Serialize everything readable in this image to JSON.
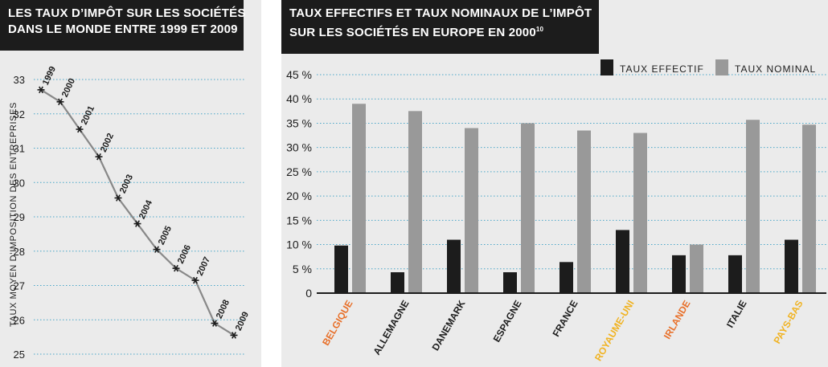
{
  "left_panel": {
    "title_line1": "LES TAUX D’IMPÔT SUR LES SOCIÉTÉS",
    "title_line2": "DANS LE MONDE ENTRE 1999 ET 2009"
  },
  "right_panel": {
    "title_line1": "TAUX EFFECTIFS ET TAUX NOMINAUX DE L’IMPÔT",
    "title_line2_main": "SUR LES SOCIÉTÉS EN EUROPE EN 2000",
    "title_line2_sup": "10"
  },
  "colors": {
    "panel_bg": "#ebebeb",
    "header_bg": "#1c1c1c",
    "line": "#888888",
    "bar_effectif": "#1c1c1c",
    "bar_nominal": "#999999",
    "grid": "#4aa6c8",
    "label_orange": "#e8702a",
    "label_yellow": "#f0b323",
    "label_dark": "#1c1c1c"
  },
  "chart_data": [
    {
      "type": "line",
      "title": "LES TAUX D’IMPÔT SUR LES SOCIÉTÉS DANS LE MONDE ENTRE 1999 ET 2009",
      "xlabel": "",
      "ylabel": "TAUX MOYEN D’IMPOSITION DES ENTREPRISES",
      "ylim": [
        25,
        33
      ],
      "yticks": [
        "25",
        "26",
        "27",
        "28",
        "29",
        "30",
        "31",
        "32",
        "33"
      ],
      "grid": true,
      "x": [
        "1999",
        "2000",
        "2001",
        "2002",
        "2003",
        "2004",
        "2005",
        "2006",
        "2007",
        "2008",
        "2009"
      ],
      "values": [
        32.7,
        32.35,
        31.55,
        30.75,
        29.55,
        28.8,
        28.05,
        27.5,
        27.15,
        25.9,
        25.55
      ]
    },
    {
      "type": "bar",
      "title": "TAUX EFFECTIFS ET TAUX NOMINAUX DE L’IMPÔT SUR LES SOCIÉTÉS EN EUROPE EN 2000",
      "xlabel": "",
      "ylabel": "",
      "ylim": [
        0,
        45
      ],
      "yticks": [
        "0",
        "5 %",
        "10 %",
        "15 %",
        "20 %",
        "25 %",
        "30 %",
        "35 %",
        "40 %",
        "45 %"
      ],
      "grid": true,
      "legend_position": "top-right",
      "categories": [
        "BELGIQUE",
        "ALLEMAGNE",
        "DANEMARK",
        "ESPAGNE",
        "FRANCE",
        "ROYAUME-UNI",
        "IRLANDE",
        "ITALIE",
        "PAYS-BAS"
      ],
      "category_colors": [
        "#e8702a",
        "#1c1c1c",
        "#1c1c1c",
        "#1c1c1c",
        "#1c1c1c",
        "#f0b323",
        "#e8702a",
        "#1c1c1c",
        "#f0b323"
      ],
      "series": [
        {
          "name": "TAUX EFFECTIF",
          "color": "#1c1c1c",
          "values": [
            9.8,
            4.3,
            11.0,
            4.3,
            6.4,
            13.0,
            7.8,
            7.8,
            11.0
          ]
        },
        {
          "name": "TAUX NOMINAL",
          "color": "#999999",
          "values": [
            39.0,
            37.5,
            34.0,
            35.0,
            33.5,
            33.0,
            10.0,
            35.7,
            34.7
          ]
        }
      ]
    }
  ]
}
